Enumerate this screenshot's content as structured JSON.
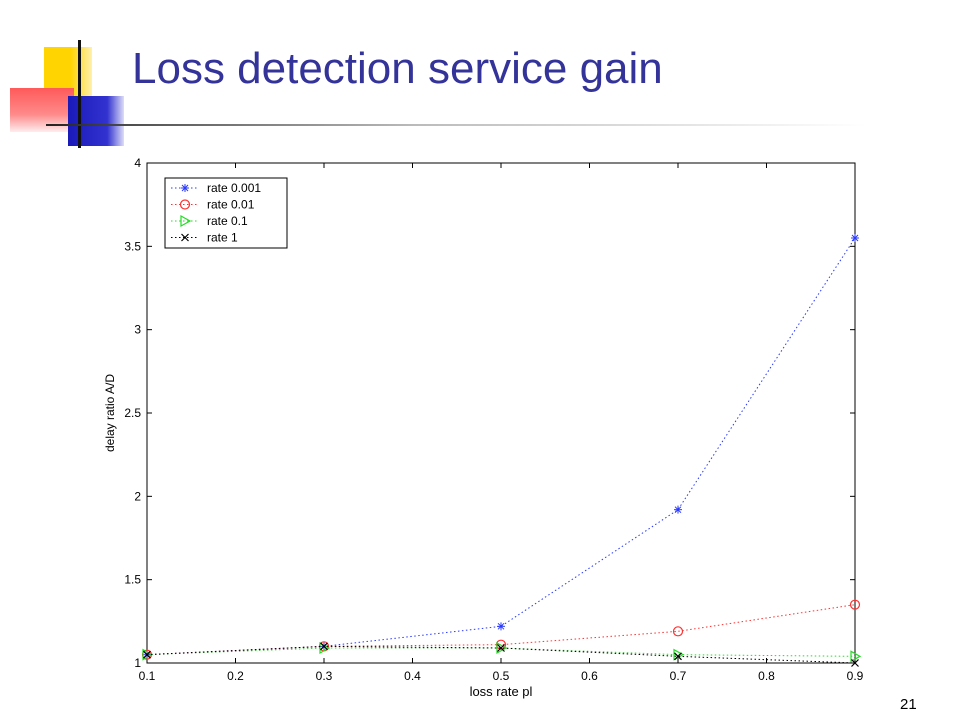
{
  "slide": {
    "title": "Loss detection service gain",
    "page_number": "21"
  },
  "chart_data": {
    "type": "line",
    "x": [
      0.1,
      0.3,
      0.5,
      0.7,
      0.9
    ],
    "xlabel": "loss rate pl",
    "ylabel": "delay ratio A/D",
    "xlim": [
      0.1,
      0.9
    ],
    "ylim": [
      1,
      4
    ],
    "xticks": [
      "0.1",
      "0.2",
      "0.3",
      "0.4",
      "0.5",
      "0.6",
      "0.7",
      "0.8",
      "0.9"
    ],
    "yticks": [
      "1",
      "1.5",
      "2",
      "2.5",
      "3",
      "3.5",
      "4"
    ],
    "grid": false,
    "legend_position": "top-left",
    "series": [
      {
        "name": "rate 0.001",
        "color": "#2a3aff",
        "marker": "star",
        "values": [
          1.05,
          1.1,
          1.22,
          1.92,
          3.55
        ]
      },
      {
        "name": "rate 0.01",
        "color": "#ff3030",
        "marker": "circle",
        "values": [
          1.05,
          1.1,
          1.11,
          1.19,
          1.35
        ]
      },
      {
        "name": "rate 0.1",
        "color": "#22dd22",
        "marker": "triangle-right",
        "values": [
          1.05,
          1.09,
          1.09,
          1.05,
          1.04
        ]
      },
      {
        "name": "rate 1",
        "color": "#000000",
        "marker": "x",
        "values": [
          1.05,
          1.1,
          1.09,
          1.04,
          1.0
        ]
      }
    ]
  }
}
